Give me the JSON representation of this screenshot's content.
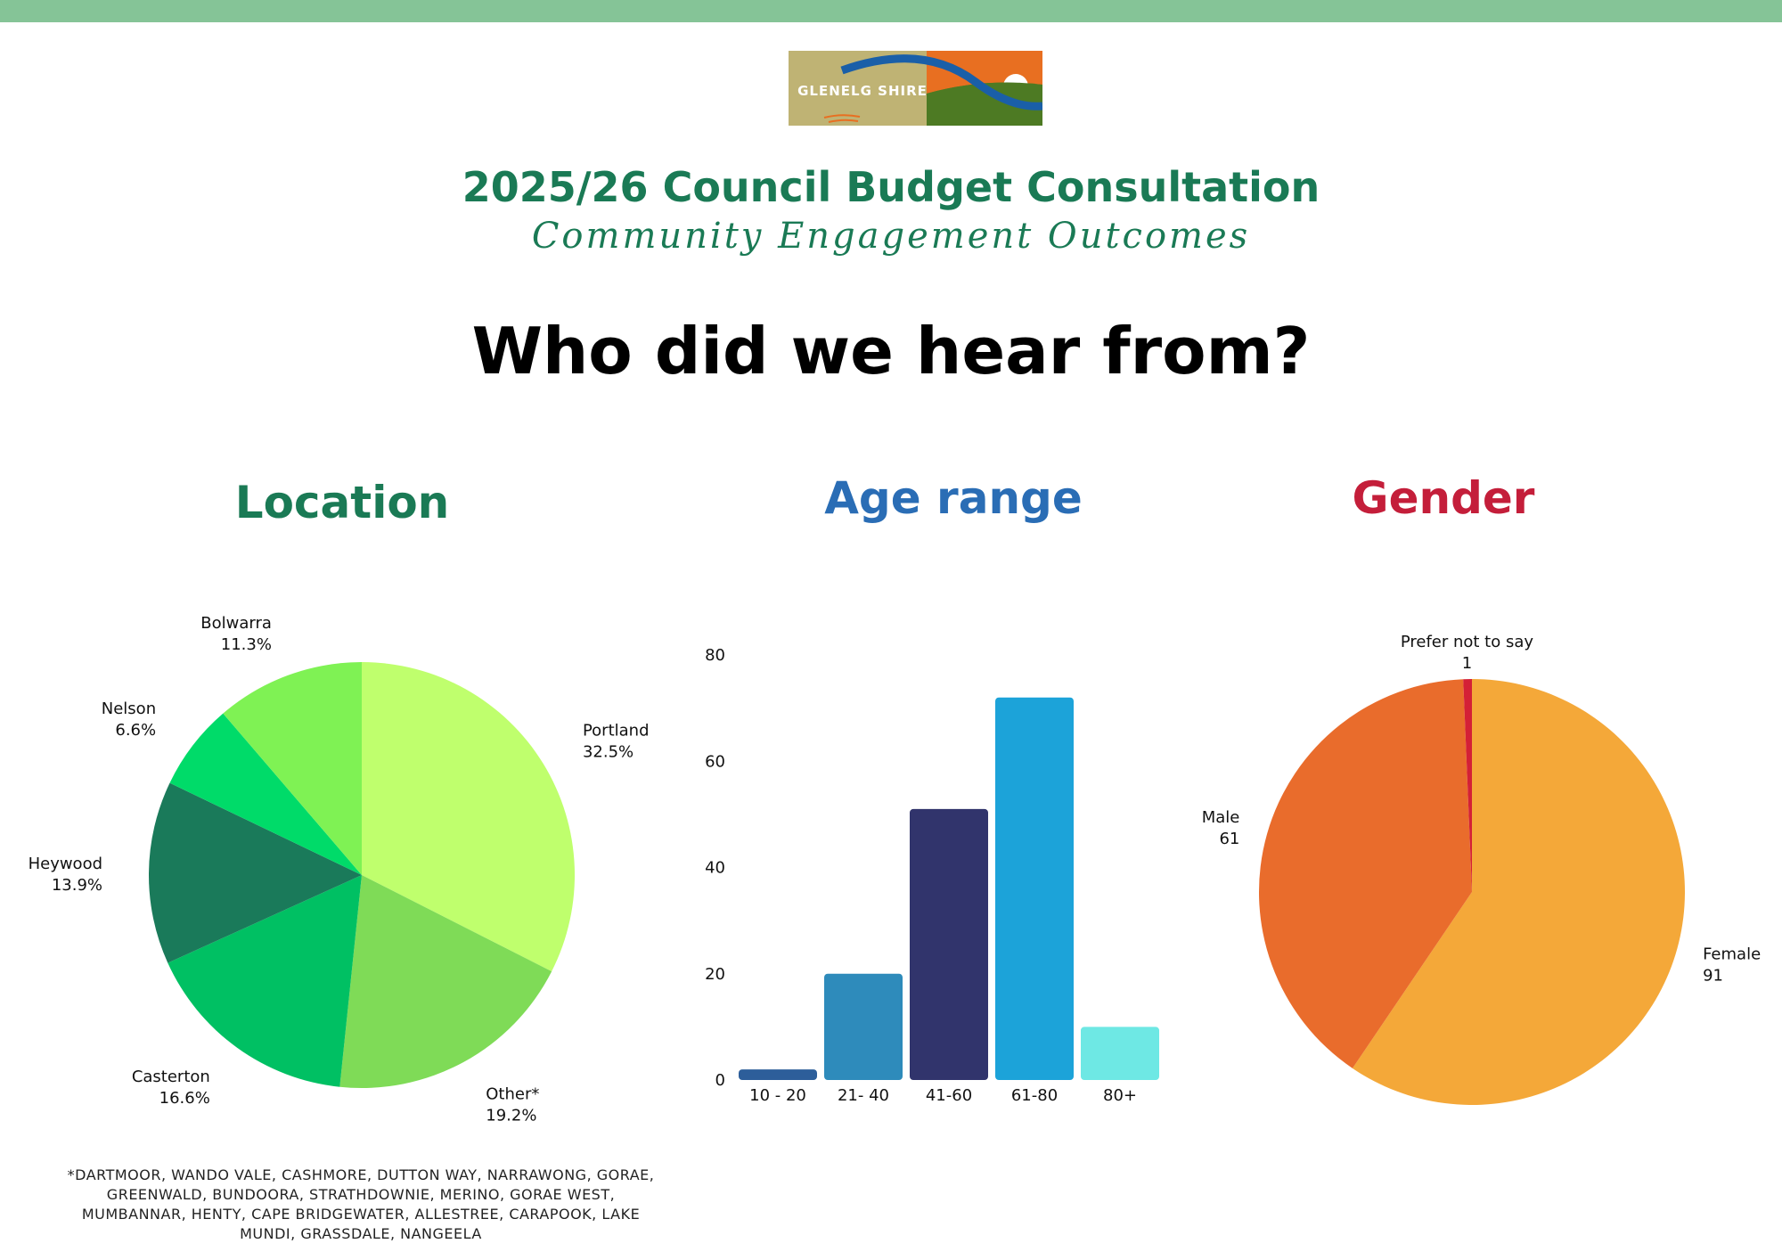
{
  "logo": {
    "text": "GLENELG SHIRE"
  },
  "header": {
    "title": "2025/26 Council Budget Consultation",
    "subtitle": "Community Engagement Outcomes",
    "heading": "Who did we hear from?"
  },
  "colors": {
    "top_bar": "#85c497",
    "title": "#1a7a55",
    "location_title": "#1a7a55",
    "age_title": "#2a6db5",
    "gender_title": "#c41e3a"
  },
  "sections": {
    "location": "Location",
    "age": "Age range",
    "gender": "Gender"
  },
  "footnote": "*DARTMOOR, WANDO VALE, CASHMORE, DUTTON WAY, NARRAWONG, GORAE, GREENWALD, BUNDOORA, STRATHDOWNIE, MERINO, GORAE WEST, MUMBANNAR, HENTY, CAPE BRIDGEWATER, ALLESTREE, CARAPOOK, LAKE MUNDI, GRASSDALE, NANGEELA",
  "chart_data": [
    {
      "type": "pie",
      "slices": [
        {
          "label": "Portland",
          "value": 32.5,
          "display": "32.5%",
          "color": "#bfff6d"
        },
        {
          "label": "Other*",
          "value": 19.2,
          "display": "19.2%",
          "color": "#7fdb57"
        },
        {
          "label": "Casterton",
          "value": 16.6,
          "display": "16.6%",
          "color": "#00c063"
        },
        {
          "label": "Heywood",
          "value": 13.9,
          "display": "13.9%",
          "color": "#1a7a5a"
        },
        {
          "label": "Nelson",
          "value": 6.6,
          "display": "6.6%",
          "color": "#00db69"
        },
        {
          "label": "Bolwarra",
          "value": 11.3,
          "display": "11.3%",
          "color": "#7ff254"
        }
      ]
    },
    {
      "type": "bar",
      "categories": [
        "10 - 20",
        "21- 40",
        "41-60",
        "61-80",
        "80+"
      ],
      "values": [
        2,
        20,
        51,
        72,
        10
      ],
      "colors": [
        "#2d5e9a",
        "#2e8bbb",
        "#31346c",
        "#1ca3d9",
        "#6ee8e4"
      ],
      "ylim": [
        0,
        80
      ],
      "yticks": [
        "0",
        "20",
        "40",
        "60",
        "80"
      ]
    },
    {
      "type": "pie",
      "slices": [
        {
          "label": "Female",
          "value": 91,
          "display": "91",
          "color": "#f4a839"
        },
        {
          "label": "Male",
          "value": 61,
          "display": "61",
          "color": "#e96c2c"
        },
        {
          "label": "Prefer not to say",
          "value": 1,
          "display": "1",
          "color": "#d42036"
        }
      ]
    }
  ]
}
